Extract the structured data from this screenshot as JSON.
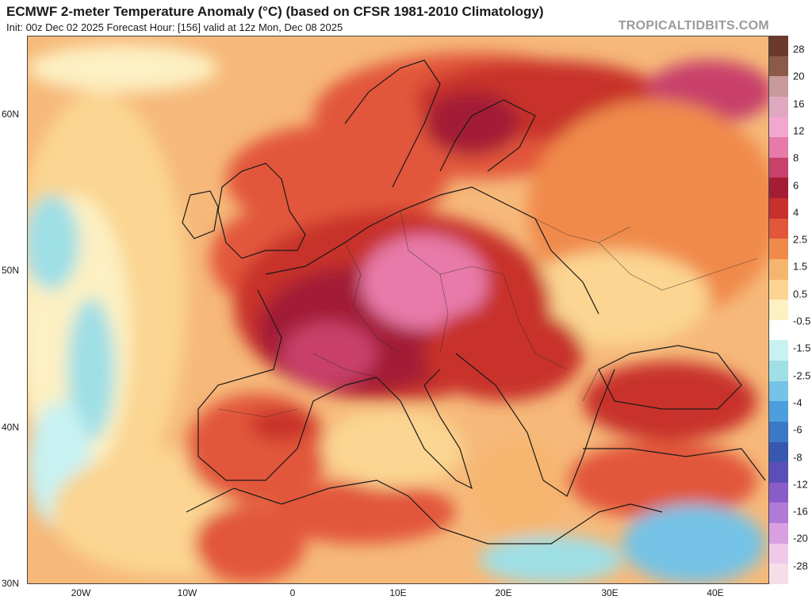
{
  "header": {
    "title": "ECMWF 2-meter Temperature Anomaly (°C) (based on CFSR 1981-2010 Climatology)",
    "subtitle": "Init: 00z Dec 02 2025   Forecast Hour: [156]   valid at 12z Mon, Dec 08 2025",
    "brand": "TROPICALTIDBITS.COM"
  },
  "axes": {
    "lat_labels": [
      "60N",
      "50N",
      "40N",
      "30N"
    ],
    "lon_labels": [
      "20W",
      "10W",
      "0",
      "10E",
      "20E",
      "30E",
      "40E"
    ]
  },
  "legend": {
    "labels": [
      "28",
      "20",
      "16",
      "12",
      "8",
      "6",
      "4",
      "2.5",
      "1.5",
      "0.5",
      "-0.5",
      "-1.5",
      "-2.5",
      "-4",
      "-6",
      "-8",
      "-12",
      "-16",
      "-20",
      "-28"
    ],
    "colors": [
      "#6b3a2c",
      "#8c5a48",
      "#c89a9a",
      "#e0a8c0",
      "#f2a7cf",
      "#e77aa8",
      "#c8416a",
      "#a31d35",
      "#c8302c",
      "#e2573a",
      "#f08a4b",
      "#f6b56e",
      "#fbd591",
      "#fdf0c2",
      "#ffffff",
      "#c8f2f2",
      "#9fdfe6",
      "#75c3e6",
      "#4c9fdc",
      "#3a78c8",
      "#3658b0",
      "#5a4fb8",
      "#8a5cc8",
      "#b07ad6",
      "#d8a0e0",
      "#f0c8e8",
      "#f6dde8"
    ]
  },
  "map": {
    "region": "Europe",
    "colors": {
      "ocean_warm": "#f6b97a",
      "ocean_mild": "#fbd591",
      "ocean_cool": "#fdf0c2",
      "cold_patch": "#9fdfe6",
      "cold_deep": "#75c3e6",
      "hot": "#e2573a",
      "hotter": "#c8302c",
      "hottest": "#a31d35",
      "extreme": "#e77aa8",
      "border": "#1a1a1a"
    }
  }
}
